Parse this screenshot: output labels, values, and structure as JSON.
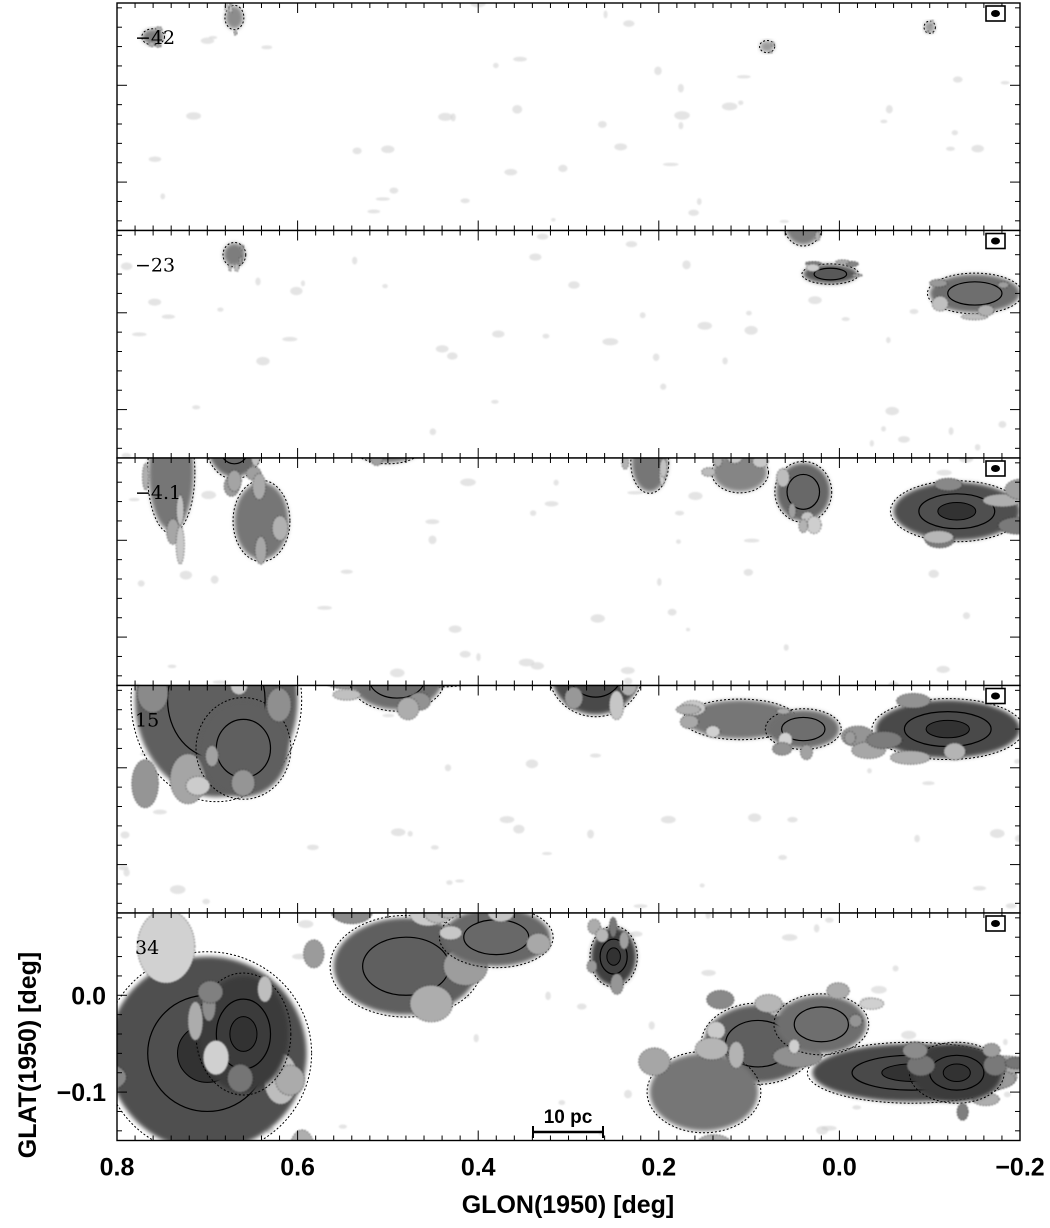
{
  "chart_data": {
    "type": "heatmap",
    "xlabel": "GLON(1950) [deg]",
    "ylabel": "GLAT(1950) [deg]",
    "xlim": [
      0.8,
      -0.2
    ],
    "ylim": [
      -0.15,
      0.085
    ],
    "x_ticks": [
      0.8,
      0.6,
      0.4,
      0.2,
      0.0,
      -0.2
    ],
    "x_tick_labels": [
      "0.8",
      "0.6",
      "0.4",
      "0.2",
      "0.0",
      "−0.2"
    ],
    "y_ticks": [
      0.0,
      -0.1
    ],
    "y_tick_labels": [
      "0.0",
      "−0.1"
    ],
    "colormap": "grayscale (white = low, black = high)",
    "contours": "solid and dotted black contour levels",
    "scale_bar": "10 pc",
    "beam_marker": "filled ellipse in small box, top-right of each panel",
    "panels": [
      {
        "velocity_label": "−42",
        "emission": [
          [
            0.76,
            0.05,
            0.012,
            0.008,
            0.5
          ],
          [
            0.67,
            0.07,
            0.01,
            0.012,
            0.4
          ],
          [
            0.56,
            0.13,
            0.006,
            0.006,
            0.4
          ],
          [
            0.13,
            0.11,
            0.012,
            0.01,
            0.5
          ],
          [
            0.06,
            0.12,
            0.016,
            0.012,
            0.7
          ],
          [
            -0.17,
            0.12,
            0.03,
            0.008,
            0.5
          ],
          [
            0.08,
            0.04,
            0.008,
            0.006,
            0.3
          ],
          [
            -0.1,
            0.06,
            0.006,
            0.006,
            0.3
          ]
        ]
      },
      {
        "velocity_label": "−23",
        "emission": [
          [
            0.72,
            0.12,
            0.006,
            0.008,
            0.5
          ],
          [
            0.55,
            0.12,
            0.012,
            0.012,
            0.6
          ],
          [
            0.67,
            0.06,
            0.012,
            0.012,
            0.5
          ],
          [
            0.32,
            0.15,
            0.06,
            0.02,
            0.4
          ],
          [
            0.19,
            0.12,
            0.03,
            0.012,
            0.6
          ],
          [
            0.09,
            0.11,
            0.02,
            0.02,
            0.6
          ],
          [
            0.04,
            0.09,
            0.02,
            0.02,
            0.5
          ],
          [
            0.01,
            0.04,
            0.03,
            0.01,
            0.75
          ],
          [
            -0.15,
            0.02,
            0.05,
            0.02,
            0.6
          ],
          [
            0.26,
            0.15,
            0.03,
            0.015,
            0.4
          ]
        ]
      },
      {
        "velocity_label": "−4.1",
        "emission": [
          [
            0.67,
            0.1,
            0.03,
            0.035,
            0.65
          ],
          [
            0.74,
            0.07,
            0.025,
            0.06,
            0.55
          ],
          [
            0.64,
            0.02,
            0.03,
            0.04,
            0.55
          ],
          [
            0.41,
            0.13,
            0.05,
            0.025,
            0.6
          ],
          [
            0.27,
            0.12,
            0.05,
            0.02,
            0.75
          ],
          [
            0.21,
            0.08,
            0.02,
            0.03,
            0.55
          ],
          [
            0.04,
            0.05,
            0.03,
            0.03,
            0.65
          ],
          [
            -0.13,
            0.03,
            0.07,
            0.03,
            0.8
          ],
          [
            0.5,
            0.1,
            0.04,
            0.02,
            0.5
          ],
          [
            0.11,
            0.07,
            0.03,
            0.02,
            0.45
          ]
        ]
      },
      {
        "velocity_label": "15",
        "emission": [
          [
            0.69,
            0.07,
            0.09,
            0.1,
            0.7
          ],
          [
            0.66,
            0.02,
            0.05,
            0.05,
            0.7
          ],
          [
            0.45,
            0.12,
            0.1,
            0.035,
            0.65
          ],
          [
            0.27,
            0.1,
            0.05,
            0.045,
            0.85
          ],
          [
            0.49,
            0.09,
            0.05,
            0.03,
            0.6
          ],
          [
            -0.12,
            0.04,
            0.08,
            0.03,
            0.85
          ],
          [
            0.11,
            0.05,
            0.06,
            0.02,
            0.55
          ],
          [
            0.04,
            0.04,
            0.04,
            0.02,
            0.6
          ]
        ]
      },
      {
        "velocity_label": "34",
        "emission": [
          [
            0.7,
            -0.06,
            0.11,
            0.1,
            0.8
          ],
          [
            0.66,
            -0.04,
            0.05,
            0.06,
            0.95
          ],
          [
            0.48,
            0.03,
            0.08,
            0.05,
            0.7
          ],
          [
            0.25,
            0.04,
            0.025,
            0.03,
            0.9
          ],
          [
            0.38,
            0.06,
            0.06,
            0.03,
            0.65
          ],
          [
            0.09,
            -0.05,
            0.06,
            0.04,
            0.7
          ],
          [
            -0.08,
            -0.08,
            0.11,
            0.03,
            0.85
          ],
          [
            -0.13,
            -0.08,
            0.05,
            0.03,
            0.95
          ],
          [
            0.15,
            -0.1,
            0.06,
            0.04,
            0.55
          ],
          [
            0.02,
            -0.03,
            0.05,
            0.03,
            0.6
          ]
        ]
      }
    ]
  }
}
